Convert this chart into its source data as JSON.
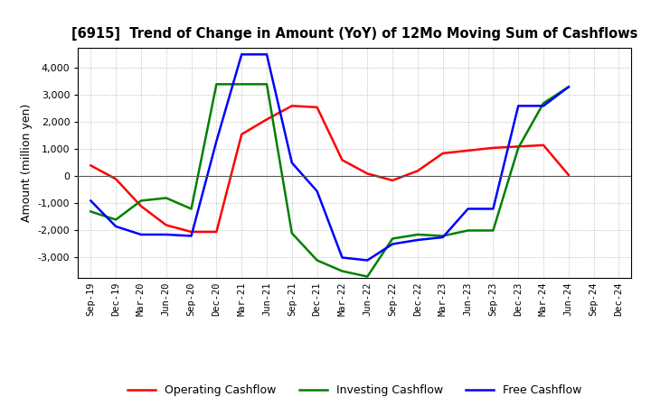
{
  "title": "[6915]  Trend of Change in Amount (YoY) of 12Mo Moving Sum of Cashflows",
  "ylabel": "Amount (million yen)",
  "x_labels": [
    "Sep-19",
    "Dec-19",
    "Mar-20",
    "Jun-20",
    "Sep-20",
    "Dec-20",
    "Mar-21",
    "Jun-21",
    "Sep-21",
    "Dec-21",
    "Mar-22",
    "Jun-22",
    "Sep-22",
    "Dec-22",
    "Mar-23",
    "Jun-23",
    "Sep-23",
    "Dec-23",
    "Mar-24",
    "Jun-24",
    "Sep-24",
    "Dec-24"
  ],
  "operating": [
    400,
    -100,
    -1100,
    -1800,
    -2050,
    -2050,
    1550,
    2100,
    2600,
    2550,
    600,
    100,
    -150,
    200,
    850,
    950,
    1050,
    1100,
    1150,
    50,
    null,
    null
  ],
  "investing": [
    -1300,
    -1600,
    -900,
    -800,
    -1200,
    3400,
    3400,
    3400,
    -2100,
    -3100,
    -3500,
    -3700,
    -2300,
    -2150,
    -2200,
    -2000,
    -2000,
    1050,
    2700,
    3300,
    null,
    null
  ],
  "free": [
    -900,
    -1850,
    -2150,
    -2150,
    -2200,
    1300,
    4500,
    4500,
    500,
    -550,
    -3000,
    -3100,
    -2500,
    -2350,
    -2250,
    -1200,
    -1200,
    2600,
    2600,
    3300,
    null,
    null
  ],
  "operating_color": "#FF0000",
  "investing_color": "#008000",
  "free_color": "#0000FF",
  "ylim": [
    -3750,
    4750
  ],
  "yticks": [
    -3000,
    -2000,
    -1000,
    0,
    1000,
    2000,
    3000,
    4000
  ],
  "background_color": "#FFFFFF",
  "grid_color": "#888888"
}
